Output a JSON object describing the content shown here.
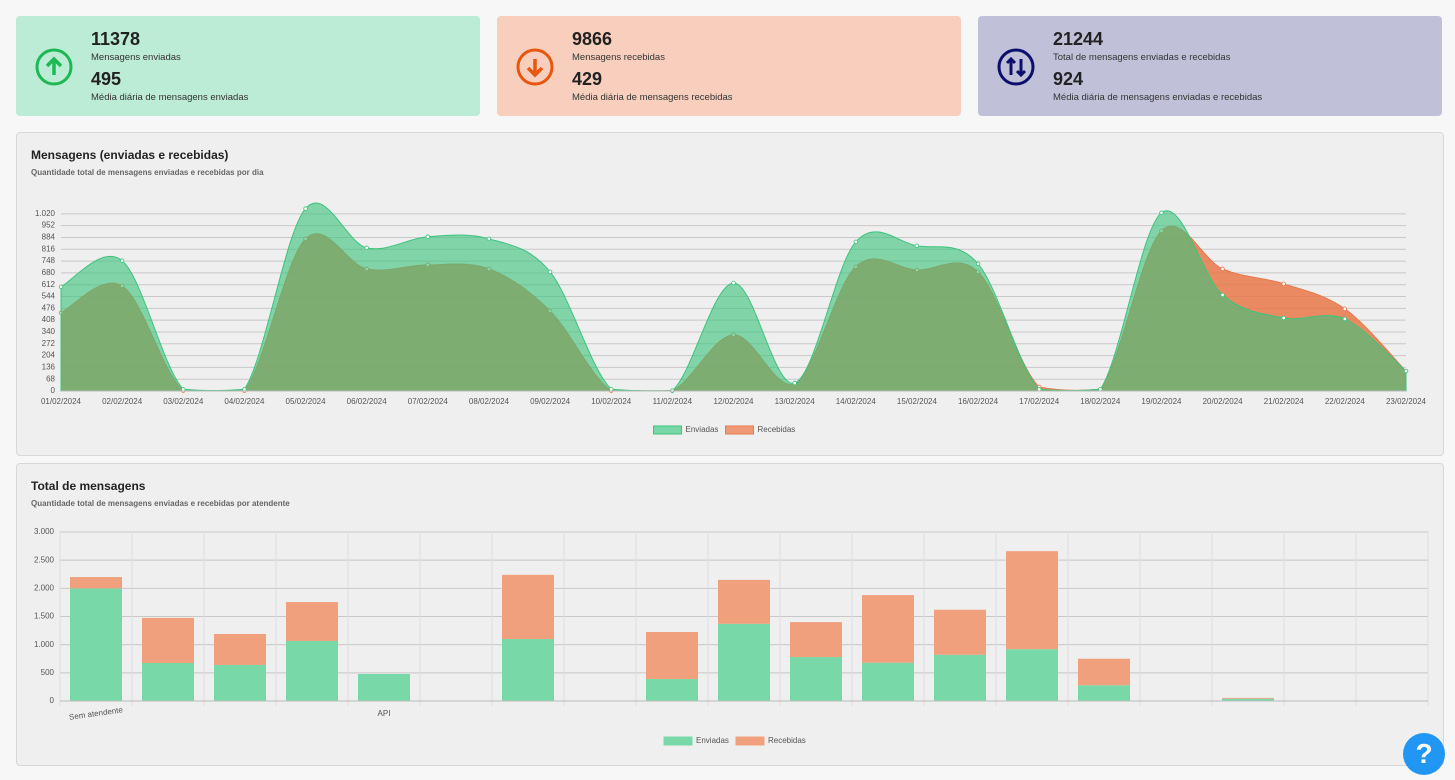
{
  "cards": [
    {
      "value": 11378,
      "label": "Mensagens enviadas",
      "avg": 495,
      "avg_label": "Média diária de mensagens enviadas"
    },
    {
      "value": 9866,
      "label": "Mensagens recebidas",
      "avg": 429,
      "avg_label": "Média diária de mensagens recebidas"
    },
    {
      "value": 21244,
      "label": "Total de mensagens enviadas e recebidas",
      "avg": 924,
      "avg_label": "Média diária de mensagens enviadas e recebidas"
    }
  ],
  "chart_data": [
    {
      "type": "area",
      "title": "Mensagens (enviadas e recebidas)",
      "subtitle": "Quantidade total de mensagens enviadas e recebidas por dia",
      "categories": [
        "01/02/2024",
        "02/02/2024",
        "03/02/2024",
        "04/02/2024",
        "05/02/2024",
        "06/02/2024",
        "07/02/2024",
        "08/02/2024",
        "09/02/2024",
        "10/02/2024",
        "11/02/2024",
        "12/02/2024",
        "13/02/2024",
        "14/02/2024",
        "15/02/2024",
        "16/02/2024",
        "17/02/2024",
        "18/02/2024",
        "19/02/2024",
        "20/02/2024",
        "21/02/2024",
        "22/02/2024",
        "23/02/2024"
      ],
      "series": [
        {
          "name": "Enviadas",
          "color": "#3cc47c",
          "values": [
            600,
            750,
            10,
            10,
            1050,
            824,
            888,
            876,
            686,
            10,
            2,
            622,
            46,
            859,
            836,
            732,
            10,
            10,
            1026,
            553,
            421,
            415,
            115
          ]
        },
        {
          "name": "Recebidas",
          "color": "#e9784a",
          "values": [
            450,
            605,
            2,
            2,
            876,
            703,
            726,
            703,
            461,
            2,
            2,
            323,
            40,
            715,
            697,
            686,
            23,
            10,
            922,
            703,
            617,
            473,
            115
          ]
        }
      ],
      "ylim": [
        0,
        1088
      ],
      "yticks": [
        0,
        68,
        136,
        204,
        272,
        340,
        408,
        476,
        544,
        612,
        680,
        748,
        816,
        884,
        952,
        {
          "value": 1020,
          "label": "1.020"
        }
      ],
      "grid": true,
      "legend": "bottom"
    },
    {
      "type": "bar",
      "stacked": true,
      "title": "Total de mensagens",
      "subtitle": "Quantidade total de mensagens enviadas e recebidas por atendente",
      "categories": [
        "Sem atendente",
        null,
        null,
        null,
        "API",
        null,
        null,
        null,
        null,
        null,
        null,
        null,
        null,
        null,
        null,
        null,
        null,
        null,
        null
      ],
      "series": [
        {
          "name": "Enviadas",
          "color": "#78d8a8",
          "values": [
            2000,
            675,
            640,
            1066,
            480,
            0,
            1100,
            0,
            390,
            1370,
            780,
            680,
            820,
            920,
            280,
            0,
            40,
            0,
            0
          ]
        },
        {
          "name": "Recebidas",
          "color": "#f0a07c",
          "values": [
            200,
            800,
            550,
            690,
            0,
            0,
            1140,
            0,
            835,
            780,
            620,
            1200,
            800,
            1740,
            470,
            0,
            15,
            5,
            0
          ]
        }
      ],
      "ylim": [
        0,
        3000
      ],
      "yticks": [
        0,
        500,
        {
          "value": 1000,
          "label": "1.000"
        },
        {
          "value": 1500,
          "label": "1.500"
        },
        {
          "value": 2000,
          "label": "2.000"
        },
        {
          "value": 2500,
          "label": "2.500"
        },
        {
          "value": 3000,
          "label": "3.000"
        }
      ],
      "grid": true,
      "legend": "bottom"
    }
  ],
  "help_button": "?"
}
